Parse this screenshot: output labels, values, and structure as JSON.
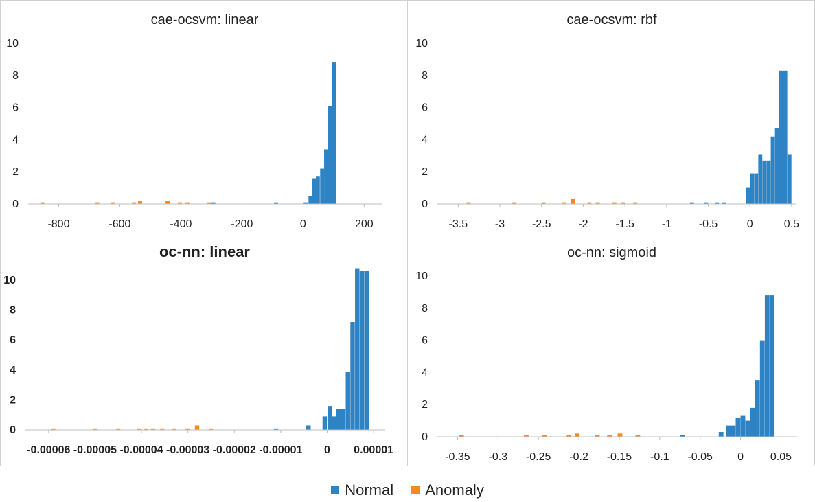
{
  "colors": {
    "normal": "#2e83c4",
    "anomaly": "#f08a24",
    "axis": "#bfbfbf"
  },
  "legend": [
    {
      "label": "Normal",
      "color": "#2e83c4"
    },
    {
      "label": "Anomaly",
      "color": "#f08a24"
    }
  ],
  "chart_data": [
    {
      "type": "bar",
      "title": "cae-ocsvm: linear",
      "xlim": [
        -900,
        260
      ],
      "ylim": [
        0,
        10
      ],
      "x_ticks": [
        -800,
        -600,
        -400,
        -200,
        0,
        200
      ],
      "x_tick_labels": [
        "-800",
        "-600",
        "-400",
        "-200",
        "0",
        "200"
      ],
      "y_ticks": [
        0,
        2,
        4,
        6,
        8,
        10
      ],
      "bin_width": 13,
      "series": [
        {
          "name": "Normal",
          "bins": [
            [
              -300,
              0.1
            ],
            [
              -95,
              0.1
            ],
            [
              2,
              0.1
            ],
            [
              18,
              0.5
            ],
            [
              30,
              1.6
            ],
            [
              42,
              1.7
            ],
            [
              56,
              2.2
            ],
            [
              69,
              3.4
            ],
            [
              82,
              6.1
            ],
            [
              95,
              8.8
            ]
          ]
        },
        {
          "name": "Anomaly",
          "bins": [
            [
              -860,
              0.1
            ],
            [
              -680,
              0.1
            ],
            [
              -630,
              0.1
            ],
            [
              -560,
              0.1
            ],
            [
              -540,
              0.2
            ],
            [
              -450,
              0.2
            ],
            [
              -410,
              0.1
            ],
            [
              -385,
              0.1
            ],
            [
              -315,
              0.1
            ]
          ]
        }
      ]
    },
    {
      "type": "bar",
      "title": "cae-ocsvm: rbf",
      "xlim": [
        -3.75,
        0.55
      ],
      "ylim": [
        0,
        10
      ],
      "x_ticks": [
        -3.5,
        -3,
        -2.5,
        -2,
        -1.5,
        -1,
        -0.5,
        0,
        0.5
      ],
      "x_tick_labels": [
        "-3.5",
        "-3",
        "-2.5",
        "-2",
        "-1.5",
        "-1",
        "-0.5",
        "0",
        "0.5"
      ],
      "y_ticks": [
        0,
        2,
        4,
        6,
        8,
        10
      ],
      "bin_width": 0.048,
      "series": [
        {
          "name": "Normal",
          "bins": [
            [
              -0.72,
              0.1
            ],
            [
              -0.55,
              0.1
            ],
            [
              -0.42,
              0.1
            ],
            [
              -0.33,
              0.1
            ],
            [
              -0.05,
              1.0
            ],
            [
              0.0,
              1.9
            ],
            [
              0.05,
              1.9
            ],
            [
              0.1,
              3.1
            ],
            [
              0.15,
              2.7
            ],
            [
              0.2,
              2.7
            ],
            [
              0.25,
              4.2
            ],
            [
              0.3,
              4.7
            ],
            [
              0.35,
              8.3
            ],
            [
              0.4,
              8.3
            ],
            [
              0.45,
              3.1
            ]
          ]
        },
        {
          "name": "Anomaly",
          "bins": [
            [
              -3.4,
              0.1
            ],
            [
              -2.85,
              0.1
            ],
            [
              -2.5,
              0.1
            ],
            [
              -2.25,
              0.1
            ],
            [
              -2.15,
              0.3
            ],
            [
              -1.95,
              0.1
            ],
            [
              -1.85,
              0.1
            ],
            [
              -1.65,
              0.1
            ],
            [
              -1.55,
              0.1
            ],
            [
              -1.4,
              0.1
            ]
          ]
        }
      ]
    },
    {
      "type": "bar",
      "title": "oc-nn: linear",
      "xlim": [
        -6.5e-05,
        1.25e-05
      ],
      "ylim": [
        0,
        10
      ],
      "x_ticks": [
        -6e-05,
        -5e-05,
        -4e-05,
        -3e-05,
        -2e-05,
        -1e-05,
        0,
        1e-05
      ],
      "x_tick_labels": [
        "-0.00006",
        "-0.00005",
        "-0.00004",
        "-0.00003",
        "-0.00002",
        "-0.00001",
        "0",
        "0.00001"
      ],
      "y_ticks": [
        0,
        2,
        4,
        6,
        8,
        10
      ],
      "bin_width": 9.5e-07,
      "series": [
        {
          "name": "Normal",
          "bins": [
            [
              -1.15e-05,
              0.1
            ],
            [
              -4.5e-06,
              0.3
            ],
            [
              -1e-06,
              0.9
            ],
            [
              1e-07,
              1.6
            ],
            [
              1.1e-06,
              0.9
            ],
            [
              2e-06,
              1.4
            ],
            [
              3e-06,
              1.4
            ],
            [
              4e-06,
              3.9
            ],
            [
              5e-06,
              7.2
            ],
            [
              6e-06,
              10.8
            ],
            [
              7e-06,
              10.6
            ],
            [
              8e-06,
              10.6
            ]
          ]
        },
        {
          "name": "Anomaly",
          "bins": [
            [
              -5.95e-05,
              0.1
            ],
            [
              -5.05e-05,
              0.1
            ],
            [
              -4.55e-05,
              0.1
            ],
            [
              -4.1e-05,
              0.1
            ],
            [
              -3.95e-05,
              0.1
            ],
            [
              -3.8e-05,
              0.1
            ],
            [
              -3.6e-05,
              0.1
            ],
            [
              -3.35e-05,
              0.1
            ],
            [
              -3.05e-05,
              0.1
            ],
            [
              -2.85e-05,
              0.3
            ],
            [
              -2.55e-05,
              0.1
            ]
          ]
        }
      ]
    },
    {
      "type": "bar",
      "title": "oc-nn: sigmoid",
      "xlim": [
        -0.375,
        0.07
      ],
      "ylim": [
        0,
        10
      ],
      "x_ticks": [
        -0.35,
        -0.3,
        -0.25,
        -0.2,
        -0.15,
        -0.1,
        -0.05,
        0,
        0.05
      ],
      "x_tick_labels": [
        "-0.35",
        "-0.3",
        "-0.25",
        "-0.2",
        "-0.15",
        "-0.1",
        "-0.05",
        "0",
        "0.05"
      ],
      "y_ticks": [
        0,
        2,
        4,
        6,
        8,
        10
      ],
      "bin_width": 0.0058,
      "series": [
        {
          "name": "Normal",
          "bins": [
            [
              -0.075,
              0.1
            ],
            [
              -0.027,
              0.3
            ],
            [
              -0.018,
              0.7
            ],
            [
              -0.012,
              0.7
            ],
            [
              -0.006,
              1.2
            ],
            [
              0.0,
              1.3
            ],
            [
              0.006,
              1.0
            ],
            [
              0.012,
              1.8
            ],
            [
              0.018,
              3.5
            ],
            [
              0.024,
              6.0
            ],
            [
              0.03,
              8.8
            ],
            [
              0.036,
              8.8
            ]
          ]
        },
        {
          "name": "Anomaly",
          "bins": [
            [
              -0.348,
              0.1
            ],
            [
              -0.268,
              0.1
            ],
            [
              -0.245,
              0.1
            ],
            [
              -0.215,
              0.1
            ],
            [
              -0.205,
              0.2
            ],
            [
              -0.18,
              0.1
            ],
            [
              -0.165,
              0.1
            ],
            [
              -0.152,
              0.2
            ],
            [
              -0.13,
              0.1
            ]
          ]
        }
      ]
    }
  ]
}
